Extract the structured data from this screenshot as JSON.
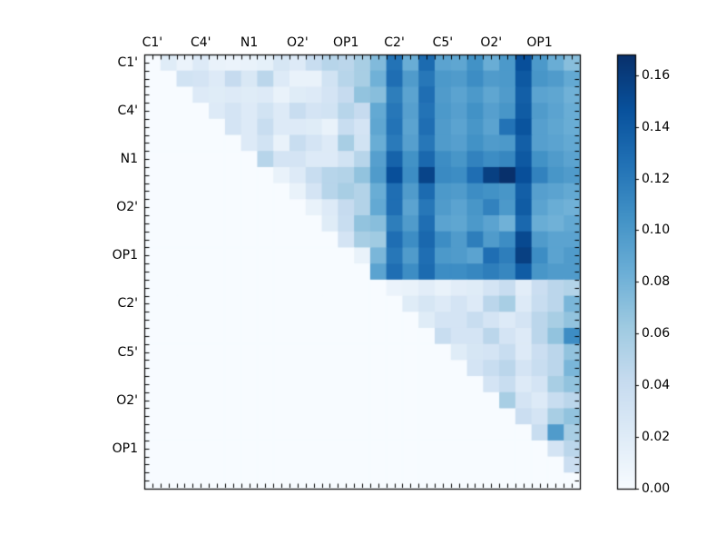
{
  "figure": {
    "background": "#ffffff",
    "frame_color": "#000000"
  },
  "chart_data": {
    "type": "heatmap",
    "size": 27,
    "triangular": "upper",
    "x_tick_labels": [
      "C1'",
      "C4'",
      "N1",
      "O2'",
      "OP1",
      "C2'",
      "C5'",
      "O2'",
      "OP1"
    ],
    "y_tick_labels": [
      "C1'",
      "C4'",
      "N1",
      "O2'",
      "OP1",
      "C2'",
      "C5'",
      "O2'",
      "OP1"
    ],
    "labeled_cell_indices": [
      0,
      3,
      6,
      9,
      12,
      15,
      18,
      21,
      24
    ],
    "colormap": "Blues",
    "vmin": 0.0,
    "vmax": 0.168,
    "colorbar_tick_labels": [
      "0.00",
      "0.02",
      "0.04",
      "0.06",
      "0.08",
      "0.10",
      "0.12",
      "0.14",
      "0.16"
    ],
    "colorbar_tick_values": [
      0.0,
      0.02,
      0.04,
      0.06,
      0.08,
      0.1,
      0.12,
      0.14,
      0.16
    ],
    "matrix": [
      [
        0,
        0.02,
        0.01,
        0.022,
        0.012,
        0.01,
        0.012,
        0.015,
        0.028,
        0.022,
        0.04,
        0.05,
        0.048,
        0.058,
        0.075,
        0.125,
        0.085,
        0.13,
        0.092,
        0.09,
        0.105,
        0.085,
        0.1,
        0.148,
        0.1,
        0.085,
        0.072
      ],
      [
        0,
        0,
        0.032,
        0.03,
        0.022,
        0.042,
        0.025,
        0.048,
        0.022,
        0.012,
        0.012,
        0.032,
        0.05,
        0.058,
        0.082,
        0.128,
        0.098,
        0.122,
        0.1,
        0.098,
        0.108,
        0.098,
        0.1,
        0.142,
        0.102,
        0.098,
        0.088
      ],
      [
        0,
        0,
        0,
        0.022,
        0.02,
        0.022,
        0.02,
        0.022,
        0.012,
        0.02,
        0.022,
        0.03,
        0.042,
        0.068,
        0.072,
        0.118,
        0.092,
        0.128,
        0.098,
        0.092,
        0.1,
        0.09,
        0.098,
        0.138,
        0.092,
        0.09,
        0.082
      ],
      [
        0,
        0,
        0,
        0,
        0.022,
        0.03,
        0.022,
        0.032,
        0.022,
        0.04,
        0.03,
        0.032,
        0.05,
        0.042,
        0.088,
        0.122,
        0.095,
        0.125,
        0.1,
        0.095,
        0.105,
        0.095,
        0.102,
        0.14,
        0.098,
        0.092,
        0.085
      ],
      [
        0,
        0,
        0,
        0,
        0,
        0.03,
        0.022,
        0.04,
        0.022,
        0.022,
        0.02,
        0.012,
        0.04,
        0.03,
        0.09,
        0.125,
        0.092,
        0.128,
        0.098,
        0.092,
        0.102,
        0.092,
        0.125,
        0.145,
        0.095,
        0.09,
        0.085
      ],
      [
        0,
        0,
        0,
        0,
        0,
        0,
        0.022,
        0.032,
        0.012,
        0.04,
        0.03,
        0.022,
        0.058,
        0.032,
        0.085,
        0.12,
        0.095,
        0.122,
        0.098,
        0.095,
        0.105,
        0.098,
        0.1,
        0.138,
        0.095,
        0.092,
        0.088
      ],
      [
        0,
        0,
        0,
        0,
        0,
        0,
        0,
        0.05,
        0.03,
        0.03,
        0.022,
        0.022,
        0.032,
        0.05,
        0.095,
        0.135,
        0.105,
        0.132,
        0.108,
        0.102,
        0.115,
        0.108,
        0.112,
        0.142,
        0.105,
        0.098,
        0.092
      ],
      [
        0,
        0,
        0,
        0,
        0,
        0,
        0,
        0,
        0.012,
        0.022,
        0.04,
        0.05,
        0.052,
        0.068,
        0.098,
        0.148,
        0.108,
        0.155,
        0.11,
        0.108,
        0.128,
        0.158,
        0.168,
        0.148,
        0.115,
        0.102,
        0.098
      ],
      [
        0,
        0,
        0,
        0,
        0,
        0,
        0,
        0,
        0,
        0.012,
        0.03,
        0.05,
        0.058,
        0.052,
        0.085,
        0.128,
        0.098,
        0.13,
        0.1,
        0.098,
        0.108,
        0.105,
        0.102,
        0.138,
        0.095,
        0.092,
        0.088
      ],
      [
        0,
        0,
        0,
        0,
        0,
        0,
        0,
        0,
        0,
        0,
        0.012,
        0.022,
        0.042,
        0.052,
        0.088,
        0.128,
        0.092,
        0.122,
        0.098,
        0.092,
        0.102,
        0.115,
        0.1,
        0.14,
        0.092,
        0.085,
        0.082
      ],
      [
        0,
        0,
        0,
        0,
        0,
        0,
        0,
        0,
        0,
        0,
        0,
        0.02,
        0.04,
        0.068,
        0.072,
        0.118,
        0.098,
        0.128,
        0.092,
        0.09,
        0.1,
        0.092,
        0.082,
        0.132,
        0.085,
        0.082,
        0.088
      ],
      [
        0,
        0,
        0,
        0,
        0,
        0,
        0,
        0,
        0,
        0,
        0,
        0,
        0.03,
        0.058,
        0.062,
        0.128,
        0.108,
        0.132,
        0.108,
        0.098,
        0.118,
        0.098,
        0.108,
        0.152,
        0.098,
        0.092,
        0.092
      ],
      [
        0,
        0,
        0,
        0,
        0,
        0,
        0,
        0,
        0,
        0,
        0,
        0,
        0,
        0.012,
        0.078,
        0.122,
        0.098,
        0.128,
        0.1,
        0.098,
        0.092,
        0.128,
        0.118,
        0.158,
        0.108,
        0.092,
        0.098
      ],
      [
        0,
        0,
        0,
        0,
        0,
        0,
        0,
        0,
        0,
        0,
        0,
        0,
        0,
        0,
        0.092,
        0.128,
        0.108,
        0.13,
        0.108,
        0.108,
        0.112,
        0.118,
        0.112,
        0.14,
        0.102,
        0.098,
        0.098
      ],
      [
        0,
        0,
        0,
        0,
        0,
        0,
        0,
        0,
        0,
        0,
        0,
        0,
        0,
        0,
        0,
        0.01,
        0.012,
        0.018,
        0.012,
        0.018,
        0.02,
        0.03,
        0.04,
        0.018,
        0.038,
        0.048,
        0.052
      ],
      [
        0,
        0,
        0,
        0,
        0,
        0,
        0,
        0,
        0,
        0,
        0,
        0,
        0,
        0,
        0,
        0,
        0.02,
        0.028,
        0.022,
        0.03,
        0.022,
        0.048,
        0.058,
        0.022,
        0.04,
        0.048,
        0.078
      ],
      [
        0,
        0,
        0,
        0,
        0,
        0,
        0,
        0,
        0,
        0,
        0,
        0,
        0,
        0,
        0,
        0,
        0,
        0.02,
        0.03,
        0.03,
        0.04,
        0.03,
        0.022,
        0.03,
        0.048,
        0.058,
        0.068
      ],
      [
        0,
        0,
        0,
        0,
        0,
        0,
        0,
        0,
        0,
        0,
        0,
        0,
        0,
        0,
        0,
        0,
        0,
        0,
        0.04,
        0.03,
        0.03,
        0.048,
        0.03,
        0.022,
        0.048,
        0.068,
        0.108
      ],
      [
        0,
        0,
        0,
        0,
        0,
        0,
        0,
        0,
        0,
        0,
        0,
        0,
        0,
        0,
        0,
        0,
        0,
        0,
        0,
        0.02,
        0.028,
        0.03,
        0.04,
        0.022,
        0.038,
        0.048,
        0.068
      ],
      [
        0,
        0,
        0,
        0,
        0,
        0,
        0,
        0,
        0,
        0,
        0,
        0,
        0,
        0,
        0,
        0,
        0,
        0,
        0,
        0,
        0.03,
        0.04,
        0.048,
        0.03,
        0.04,
        0.048,
        0.078
      ],
      [
        0,
        0,
        0,
        0,
        0,
        0,
        0,
        0,
        0,
        0,
        0,
        0,
        0,
        0,
        0,
        0,
        0,
        0,
        0,
        0,
        0,
        0.03,
        0.04,
        0.022,
        0.03,
        0.058,
        0.068
      ],
      [
        0,
        0,
        0,
        0,
        0,
        0,
        0,
        0,
        0,
        0,
        0,
        0,
        0,
        0,
        0,
        0,
        0,
        0,
        0,
        0,
        0,
        0,
        0.058,
        0.03,
        0.022,
        0.04,
        0.048
      ],
      [
        0,
        0,
        0,
        0,
        0,
        0,
        0,
        0,
        0,
        0,
        0,
        0,
        0,
        0,
        0,
        0,
        0,
        0,
        0,
        0,
        0,
        0,
        0,
        0.038,
        0.03,
        0.058,
        0.068
      ],
      [
        0,
        0,
        0,
        0,
        0,
        0,
        0,
        0,
        0,
        0,
        0,
        0,
        0,
        0,
        0,
        0,
        0,
        0,
        0,
        0,
        0,
        0,
        0,
        0,
        0.04,
        0.098,
        0.058
      ],
      [
        0,
        0,
        0,
        0,
        0,
        0,
        0,
        0,
        0,
        0,
        0,
        0,
        0,
        0,
        0,
        0,
        0,
        0,
        0,
        0,
        0,
        0,
        0,
        0,
        0,
        0.03,
        0.048
      ],
      [
        0,
        0,
        0,
        0,
        0,
        0,
        0,
        0,
        0,
        0,
        0,
        0,
        0,
        0,
        0,
        0,
        0,
        0,
        0,
        0,
        0,
        0,
        0,
        0,
        0,
        0,
        0.038
      ],
      [
        0,
        0,
        0,
        0,
        0,
        0,
        0,
        0,
        0,
        0,
        0,
        0,
        0,
        0,
        0,
        0,
        0,
        0,
        0,
        0,
        0,
        0,
        0,
        0,
        0,
        0,
        0
      ]
    ]
  }
}
